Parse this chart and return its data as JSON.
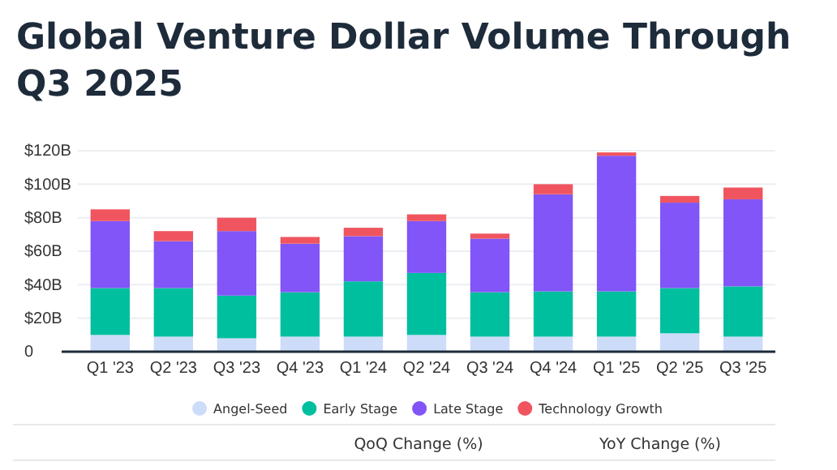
{
  "chart_data": {
    "type": "bar",
    "title": "Global Venture Dollar Volume Through Q3 2025",
    "stacked": true,
    "categories": [
      "Q1 '23",
      "Q2 '23",
      "Q3 '23",
      "Q4 '23",
      "Q1 '24",
      "Q2 '24",
      "Q3 '24",
      "Q4 '24",
      "Q1 '25",
      "Q2 '25",
      "Q3 '25"
    ],
    "series": [
      {
        "name": "Angel-Seed",
        "color": "#cddcf8",
        "values": [
          10,
          9,
          8,
          9,
          9,
          10,
          9,
          9,
          9,
          11,
          9
        ]
      },
      {
        "name": "Early Stage",
        "color": "#00bf9f",
        "values": [
          28,
          29,
          25.5,
          26.5,
          33,
          37,
          26.5,
          27,
          27,
          27,
          30
        ]
      },
      {
        "name": "Late Stage",
        "color": "#8155f7",
        "values": [
          40,
          28,
          38.5,
          29,
          27,
          31,
          32,
          58,
          81,
          51,
          52
        ]
      },
      {
        "name": "Technology Growth",
        "color": "#f0555f",
        "values": [
          7,
          6,
          8,
          4,
          5,
          4,
          3,
          6,
          2,
          4,
          7
        ]
      }
    ],
    "ylim": [
      0,
      120
    ],
    "yticks": [
      {
        "value": 0,
        "label": "0"
      },
      {
        "value": 20,
        "label": "$20B"
      },
      {
        "value": 40,
        "label": "$40B"
      },
      {
        "value": 60,
        "label": "$60B"
      },
      {
        "value": 80,
        "label": "$80B"
      },
      {
        "value": 100,
        "label": "$100B"
      },
      {
        "value": 120,
        "label": "$120B"
      }
    ],
    "grid": "y",
    "legend": "bottom",
    "annotations": [
      "QoQ Change (%)",
      "YoY Change (%)"
    ]
  }
}
